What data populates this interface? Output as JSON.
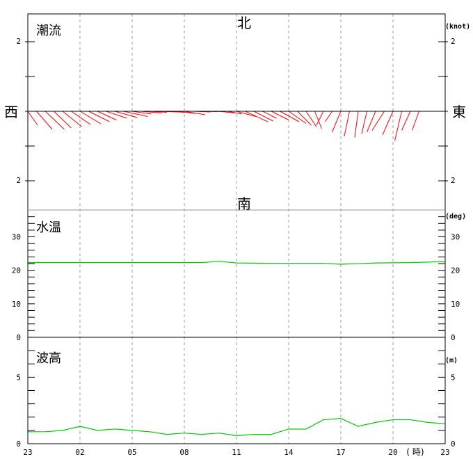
{
  "title": "",
  "chart_data": [
    {
      "type": "vector",
      "panel_label": "潮流",
      "unit_label": "(knot)",
      "compass": {
        "north": "北",
        "south": "南",
        "east": "東",
        "west": "西"
      },
      "y_ticks_left": [
        "2",
        "2"
      ],
      "y_ticks_right": [
        "2",
        "2"
      ],
      "scale_max": 2,
      "color": "#ff0000",
      "vectors": [
        {
          "h": 0.0,
          "east": 0.28,
          "north": -0.4
        },
        {
          "h": 0.5,
          "east": 0.45,
          "north": -0.52
        },
        {
          "h": 1.0,
          "east": 0.55,
          "north": -0.52
        },
        {
          "h": 1.5,
          "east": 0.5,
          "north": -0.48
        },
        {
          "h": 2.0,
          "east": 0.55,
          "north": -0.44
        },
        {
          "h": 2.5,
          "east": 0.55,
          "north": -0.38
        },
        {
          "h": 3.0,
          "east": 0.6,
          "north": -0.36
        },
        {
          "h": 3.5,
          "east": 0.6,
          "north": -0.3
        },
        {
          "h": 4.0,
          "east": 0.55,
          "north": -0.25
        },
        {
          "h": 4.5,
          "east": 0.6,
          "north": -0.2
        },
        {
          "h": 5.0,
          "east": 0.65,
          "north": -0.18
        },
        {
          "h": 5.5,
          "east": 0.7,
          "north": -0.15
        },
        {
          "h": 6.0,
          "east": 0.55,
          "north": -0.08
        },
        {
          "h": 6.5,
          "east": 0.6,
          "north": -0.05
        },
        {
          "h": 7.0,
          "east": 0.5,
          "north": -0.03
        },
        {
          "h": 7.5,
          "east": 0.55,
          "north": -0.02
        },
        {
          "h": 8.0,
          "east": 0.5,
          "north": -0.03
        },
        {
          "h": 8.5,
          "east": 0.55,
          "north": -0.06
        },
        {
          "h": 9.0,
          "east": 0.6,
          "north": -0.1
        },
        {
          "h": 9.5,
          "east": 0.5,
          "north": -0.02
        },
        {
          "h": 10.0,
          "east": 0.45,
          "north": -0.01
        },
        {
          "h": 10.5,
          "east": 0.4,
          "north": -0.01
        },
        {
          "h": 11.0,
          "east": 0.45,
          "north": -0.05
        },
        {
          "h": 11.5,
          "east": 0.4,
          "north": -0.08
        },
        {
          "h": 12.0,
          "east": 0.55,
          "north": -0.15
        },
        {
          "h": 12.5,
          "east": 0.65,
          "north": -0.3
        },
        {
          "h": 13.0,
          "east": 0.55,
          "north": -0.28
        },
        {
          "h": 13.5,
          "east": 0.4,
          "north": -0.2
        },
        {
          "h": 14.0,
          "east": 0.5,
          "north": -0.25
        },
        {
          "h": 14.5,
          "east": 0.55,
          "north": -0.3
        },
        {
          "h": 15.0,
          "east": 0.5,
          "north": -0.35
        },
        {
          "h": 15.5,
          "east": 0.4,
          "north": -0.4
        },
        {
          "h": 16.0,
          "east": 0.3,
          "north": -0.45
        },
        {
          "h": 16.5,
          "east": 0.2,
          "north": -0.5
        },
        {
          "h": 17.0,
          "east": -0.2,
          "north": -0.4
        },
        {
          "h": 17.5,
          "east": -0.2,
          "north": -0.3
        },
        {
          "h": 18.0,
          "east": -0.25,
          "north": -0.6
        },
        {
          "h": 18.5,
          "east": -0.15,
          "north": -0.72
        },
        {
          "h": 19.0,
          "east": -0.1,
          "north": -0.75
        },
        {
          "h": 19.5,
          "east": -0.15,
          "north": -0.65
        },
        {
          "h": 20.0,
          "east": -0.25,
          "north": -0.6
        },
        {
          "h": 20.5,
          "east": -0.35,
          "north": -0.55
        },
        {
          "h": 21.0,
          "east": -0.3,
          "north": -0.68
        },
        {
          "h": 21.5,
          "east": -0.2,
          "north": -0.85
        },
        {
          "h": 22.0,
          "east": -0.25,
          "north": -0.55
        },
        {
          "h": 22.5,
          "east": -0.2,
          "north": -0.55
        }
      ]
    },
    {
      "type": "line",
      "panel_label": "水温",
      "unit_label": "(deg)",
      "ylim": [
        0,
        38
      ],
      "y_ticks": [
        "0",
        "10",
        "20",
        "30"
      ],
      "color": "#00cc00",
      "x": [
        0,
        2,
        4,
        6,
        8,
        10,
        11,
        12,
        14,
        16,
        17,
        18,
        20,
        22,
        24
      ],
      "values": [
        22.3,
        22.3,
        22.3,
        22.3,
        22.3,
        22.3,
        22.7,
        22.2,
        22.1,
        22.1,
        22.1,
        21.8,
        22.2,
        22.3,
        22.6
      ]
    },
    {
      "type": "line",
      "panel_label": "波高",
      "unit_label": "(m)",
      "ylim": [
        0,
        8
      ],
      "y_ticks": [
        "0",
        "5"
      ],
      "color": "#00cc00",
      "x": [
        0,
        1,
        2,
        3,
        4,
        5,
        6,
        7,
        8,
        9,
        10,
        11,
        12,
        13,
        14,
        15,
        16,
        17,
        18,
        19,
        20,
        21,
        22,
        23,
        24
      ],
      "values": [
        0.9,
        0.9,
        1.0,
        1.3,
        1.0,
        1.1,
        1.0,
        0.9,
        0.7,
        0.8,
        0.7,
        0.8,
        0.6,
        0.7,
        0.7,
        1.1,
        1.1,
        1.8,
        1.9,
        1.3,
        1.6,
        1.8,
        1.8,
        1.6,
        1.5
      ]
    }
  ],
  "x_axis": {
    "tick_labels": [
      "23",
      "02",
      "05",
      "08",
      "11",
      "14",
      "17",
      "20",
      "23"
    ],
    "unit": "( 時)"
  }
}
